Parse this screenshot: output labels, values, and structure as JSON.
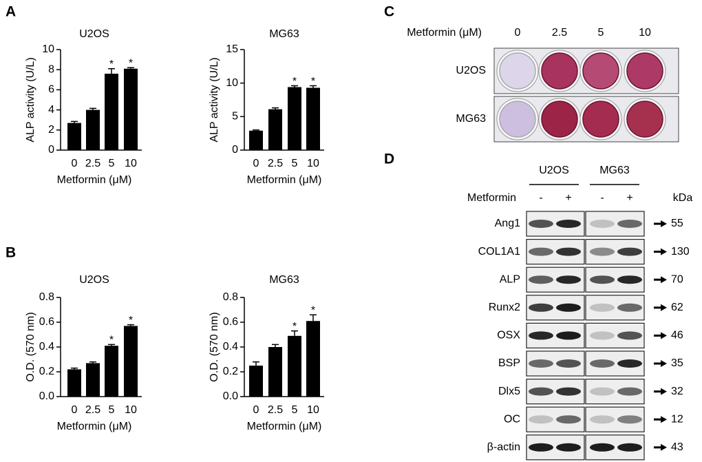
{
  "panel_labels": [
    "A",
    "B",
    "C",
    "D"
  ],
  "chart_data": [
    {
      "type": "bar",
      "title": "U2OS",
      "x_label": "Metformin (μM)",
      "y_label": "ALP activity (U/L)",
      "categories": [
        "0",
        "2.5",
        "5",
        "10"
      ],
      "values": [
        2.7,
        4.0,
        7.6,
        8.1
      ],
      "errors": [
        0.15,
        0.15,
        0.5,
        0.1
      ],
      "annotations": [
        null,
        null,
        "*",
        "*"
      ],
      "color": "#000000",
      "ylim": [
        0,
        10
      ],
      "yticks": [
        0,
        2,
        4,
        6,
        8,
        10
      ]
    },
    {
      "type": "bar",
      "title": "MG63",
      "x_label": "Metformin (μM)",
      "y_label": "ALP activity (U/L)",
      "categories": [
        "0",
        "2.5",
        "5",
        "10"
      ],
      "values": [
        2.9,
        6.1,
        9.4,
        9.3
      ],
      "errors": [
        0.1,
        0.2,
        0.2,
        0.3
      ],
      "annotations": [
        null,
        null,
        "*",
        "*"
      ],
      "color": "#000000",
      "ylim": [
        0,
        15
      ],
      "yticks": [
        0,
        5,
        10,
        15
      ]
    },
    {
      "type": "bar",
      "title": "U2OS",
      "x_label": "Metformin (μM)",
      "y_label": "O.D. (570 nm)",
      "categories": [
        "0",
        "2.5",
        "5",
        "10"
      ],
      "values": [
        0.22,
        0.27,
        0.41,
        0.57
      ],
      "errors": [
        0.01,
        0.01,
        0.01,
        0.01
      ],
      "annotations": [
        null,
        null,
        "*",
        "*"
      ],
      "color": "#000000",
      "ylim": [
        0,
        0.8
      ],
      "yticks": [
        {
          "value": 0,
          "label": "0.0"
        },
        0.2,
        0.4,
        0.6,
        0.8
      ]
    },
    {
      "type": "bar",
      "title": "MG63",
      "x_label": "Metformin (μM)",
      "y_label": "O.D. (570 nm)",
      "categories": [
        "0",
        "2.5",
        "5",
        "10"
      ],
      "values": [
        0.25,
        0.4,
        0.49,
        0.61
      ],
      "errors": [
        0.03,
        0.02,
        0.04,
        0.05
      ],
      "annotations": [
        null,
        null,
        "*",
        "*"
      ],
      "color": "#000000",
      "ylim": [
        0,
        0.8
      ],
      "yticks": [
        {
          "value": 0,
          "label": "0.0"
        },
        0.2,
        0.4,
        0.6,
        0.8
      ]
    }
  ],
  "plate": {
    "header": "Metformin (μM)",
    "concentrations": [
      "0",
      "2.5",
      "5",
      "10"
    ],
    "rows": [
      "U2OS",
      "MG63"
    ]
  },
  "blot": {
    "groups": [
      "U2OS",
      "MG63"
    ],
    "treatment": "Metformin",
    "signs": [
      "-",
      "+",
      "-",
      "+"
    ],
    "unit": "kDa",
    "rows": [
      {
        "name": "Ang1",
        "kda": "55"
      },
      {
        "name": "COL1A1",
        "kda": "130"
      },
      {
        "name": "ALP",
        "kda": "70"
      },
      {
        "name": "Runx2",
        "kda": "62"
      },
      {
        "name": "OSX",
        "kda": "46"
      },
      {
        "name": "BSP",
        "kda": "35"
      },
      {
        "name": "Dlx5",
        "kda": "32"
      },
      {
        "name": "OC",
        "kda": "12"
      },
      {
        "name": "β-actin",
        "kda": "43"
      }
    ]
  }
}
